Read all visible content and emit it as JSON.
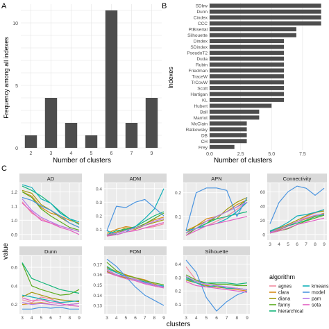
{
  "panel_labels": {
    "a": "A",
    "b": "B",
    "c": "C"
  },
  "panel_a": {
    "type": "bar",
    "categories": [
      "2",
      "3",
      "4",
      "5",
      "6",
      "7",
      "9"
    ],
    "values": [
      1,
      4,
      2,
      1,
      11,
      2,
      4
    ],
    "xlabel": "Number of clusters",
    "ylabel": "Frequency among all indexes",
    "yticks": [
      "0",
      "1",
      "2",
      "3",
      "4",
      "5",
      "6",
      "7",
      "8",
      "9",
      "10",
      "11"
    ],
    "ylim": [
      0,
      11.5
    ],
    "bar_color": "#4d4d4d",
    "grid_color": "#e3e3e3"
  },
  "panel_b": {
    "type": "bar",
    "orientation": "horizontal",
    "categories": [
      "SDbw",
      "Dunn",
      "Cindex",
      "CCC",
      "PtBiserial",
      "Silhouette",
      "Dindex",
      "SDindex",
      "PseudoT2",
      "Duda",
      "Rubin",
      "Friedman",
      "TraceW",
      "TrCovW",
      "Scott",
      "Hartigan",
      "KL",
      "Hubert",
      "Ball",
      "Marriot",
      "McClain",
      "Ratkowsky",
      "DB",
      "CH",
      "Frey"
    ],
    "values": [
      9,
      9,
      9,
      9,
      7,
      7,
      6,
      6,
      6,
      6,
      6,
      6,
      6,
      6,
      6,
      6,
      6,
      5,
      4,
      4,
      3,
      3,
      3,
      3,
      2
    ],
    "xlabel": "Number of clusters",
    "ylabel": "Indexes",
    "xticks": [
      "0.0",
      "2.5",
      "5.0",
      "7.5"
    ],
    "xlim": [
      0,
      9.3
    ],
    "bar_color": "#4d4d4d",
    "grid_color": "#e3e3e3"
  },
  "panel_c": {
    "xlabel": "clusters",
    "ylabel": "value",
    "x": [
      3,
      4,
      5,
      6,
      7,
      8,
      9
    ],
    "xticks": [
      "3",
      "4",
      "5",
      "6",
      "7",
      "8",
      "9"
    ],
    "legend_title": "algorithm",
    "algorithms": [
      {
        "name": "agnes",
        "color": "#f08aa0"
      },
      {
        "name": "clara",
        "color": "#d58a18"
      },
      {
        "name": "diana",
        "color": "#a29a0e"
      },
      {
        "name": "fanny",
        "color": "#5aab1e"
      },
      {
        "name": "hierarchical",
        "color": "#14b67a"
      },
      {
        "name": "kmeans",
        "color": "#10b0b8"
      },
      {
        "name": "model",
        "color": "#4b95e0"
      },
      {
        "name": "pam",
        "color": "#b778e8"
      },
      {
        "name": "sota",
        "color": "#e25ec2"
      }
    ],
    "facets": [
      {
        "title": "AD",
        "yticks": [
          "0.9",
          "1.0",
          "1.1",
          "1.2"
        ],
        "ylim": [
          0.86,
          1.26
        ],
        "series": [
          [
            1.13,
            1.05,
            1.01,
            0.98,
            0.96,
            0.94,
            0.92
          ],
          [
            1.2,
            1.17,
            1.09,
            1.05,
            1.03,
            1.0,
            0.98
          ],
          [
            1.21,
            1.19,
            1.11,
            1.07,
            1.02,
            0.98,
            0.95
          ],
          [
            1.2,
            1.16,
            1.08,
            1.03,
            0.99,
            0.95,
            0.93
          ],
          [
            1.24,
            1.21,
            1.17,
            1.12,
            1.06,
            1.01,
            0.97
          ],
          [
            1.25,
            1.23,
            1.15,
            1.12,
            1.05,
            1.01,
            0.99
          ],
          [
            1.16,
            1.14,
            1.1,
            1.07,
            1.03,
            0.98,
            0.95
          ],
          [
            1.15,
            1.07,
            1.02,
            0.99,
            0.96,
            0.94,
            0.92
          ],
          [
            1.12,
            1.06,
            1.0,
            0.98,
            0.95,
            0.93,
            0.9
          ]
        ]
      },
      {
        "title": "ADM",
        "yticks": [
          "0.1",
          "0.2",
          "0.3",
          "0.4"
        ],
        "ylim": [
          0.02,
          0.44
        ],
        "series": [
          [
            0.06,
            0.08,
            0.1,
            0.09,
            0.11,
            0.12,
            0.14
          ],
          [
            0.07,
            0.1,
            0.12,
            0.11,
            0.14,
            0.17,
            0.19
          ],
          [
            0.05,
            0.08,
            0.11,
            0.1,
            0.13,
            0.15,
            0.17
          ],
          [
            0.05,
            0.07,
            0.1,
            0.11,
            0.14,
            0.18,
            0.22
          ],
          [
            0.06,
            0.09,
            0.1,
            0.12,
            0.16,
            0.2,
            0.23
          ],
          [
            0.09,
            0.06,
            0.08,
            0.12,
            0.18,
            0.25,
            0.4
          ],
          [
            0.09,
            0.27,
            0.26,
            0.3,
            0.32,
            0.26,
            0.2
          ],
          [
            0.06,
            0.07,
            0.09,
            0.11,
            0.13,
            0.16,
            0.18
          ],
          [
            0.05,
            0.06,
            0.08,
            0.09,
            0.11,
            0.13,
            0.15
          ]
        ]
      },
      {
        "title": "APN",
        "yticks": [
          "0.1",
          "0.2"
        ],
        "ylim": [
          0.0,
          0.24
        ],
        "series": [
          [
            0.03,
            0.05,
            0.06,
            0.08,
            0.1,
            0.13,
            0.16
          ],
          [
            0.04,
            0.06,
            0.09,
            0.1,
            0.12,
            0.15,
            0.17
          ],
          [
            0.03,
            0.06,
            0.08,
            0.09,
            0.13,
            0.16,
            0.18
          ],
          [
            0.02,
            0.05,
            0.07,
            0.1,
            0.12,
            0.14,
            0.17
          ],
          [
            0.03,
            0.05,
            0.07,
            0.09,
            0.1,
            0.11,
            0.12
          ],
          [
            0.04,
            0.05,
            0.06,
            0.07,
            0.09,
            0.12,
            0.16
          ],
          [
            0.04,
            0.2,
            0.22,
            0.22,
            0.21,
            0.1,
            0.18
          ],
          [
            0.03,
            0.05,
            0.08,
            0.1,
            0.12,
            0.14,
            0.16
          ],
          [
            0.02,
            0.04,
            0.06,
            0.07,
            0.08,
            0.09,
            0.1
          ]
        ]
      },
      {
        "title": "Connectivity",
        "yticks": [
          "0",
          "20",
          "40",
          "60"
        ],
        "ylim": [
          -8,
          72
        ],
        "series": [
          [
            3,
            8,
            12,
            18,
            25,
            30,
            35
          ],
          [
            2,
            6,
            12,
            18,
            22,
            26,
            30
          ],
          [
            5,
            9,
            14,
            20,
            26,
            31,
            33
          ],
          [
            2,
            5,
            8,
            14,
            19,
            23,
            27
          ],
          [
            4,
            7,
            12,
            16,
            20,
            25,
            28
          ],
          [
            5,
            10,
            17,
            26,
            28,
            31,
            35
          ],
          [
            15,
            45,
            60,
            68,
            65,
            55,
            65
          ],
          [
            3,
            7,
            13,
            18,
            23,
            27,
            29
          ],
          [
            2,
            5,
            9,
            14,
            17,
            20,
            23
          ]
        ]
      },
      {
        "title": "Dunn",
        "yticks": [
          "0.2",
          "0.4",
          "0.6"
        ],
        "ylim": [
          0.1,
          0.72
        ],
        "series": [
          [
            0.25,
            0.22,
            0.28,
            0.26,
            0.22,
            0.23,
            0.24
          ],
          [
            0.2,
            0.21,
            0.22,
            0.2,
            0.19,
            0.2,
            0.21
          ],
          [
            0.28,
            0.33,
            0.3,
            0.27,
            0.25,
            0.24,
            0.23
          ],
          [
            0.64,
            0.4,
            0.36,
            0.33,
            0.3,
            0.31,
            0.36
          ],
          [
            0.65,
            0.48,
            0.44,
            0.4,
            0.36,
            0.34,
            0.32
          ],
          [
            0.3,
            0.28,
            0.26,
            0.24,
            0.22,
            0.23,
            0.24
          ],
          [
            0.15,
            0.15,
            0.17,
            0.16,
            0.17,
            0.15,
            0.15
          ],
          [
            0.22,
            0.2,
            0.21,
            0.2,
            0.19,
            0.2,
            0.21
          ],
          [
            0.27,
            0.24,
            0.25,
            0.22,
            0.21,
            0.19,
            0.18
          ]
        ]
      },
      {
        "title": "FOM",
        "yticks": [
          "0.13",
          "0.14",
          "0.15",
          "0.16",
          "0.17"
        ],
        "ylim": [
          0.122,
          0.178
        ],
        "series": [
          [
            0.165,
            0.16,
            0.157,
            0.156,
            0.154,
            0.15,
            0.148
          ],
          [
            0.167,
            0.163,
            0.16,
            0.157,
            0.155,
            0.151,
            0.148
          ],
          [
            0.163,
            0.159,
            0.157,
            0.155,
            0.153,
            0.15,
            0.148
          ],
          [
            0.172,
            0.164,
            0.159,
            0.157,
            0.154,
            0.152,
            0.15
          ],
          [
            0.168,
            0.162,
            0.158,
            0.155,
            0.152,
            0.15,
            0.148
          ],
          [
            0.166,
            0.162,
            0.158,
            0.155,
            0.153,
            0.15,
            0.149
          ],
          [
            0.175,
            0.168,
            0.158,
            0.148,
            0.14,
            0.135,
            0.13
          ],
          [
            0.164,
            0.16,
            0.158,
            0.155,
            0.152,
            0.15,
            0.148
          ],
          [
            0.162,
            0.159,
            0.156,
            0.154,
            0.151,
            0.149,
            0.147
          ]
        ]
      },
      {
        "title": "Silhouette",
        "yticks": [
          "0.1",
          "0.2",
          "0.3",
          "0.4"
        ],
        "ylim": [
          0.03,
          0.46
        ],
        "series": [
          [
            0.38,
            0.28,
            0.25,
            0.24,
            0.23,
            0.22,
            0.21
          ],
          [
            0.3,
            0.26,
            0.24,
            0.23,
            0.22,
            0.21,
            0.2
          ],
          [
            0.28,
            0.26,
            0.24,
            0.23,
            0.22,
            0.22,
            0.21
          ],
          [
            0.32,
            0.28,
            0.26,
            0.25,
            0.25,
            0.24,
            0.24
          ],
          [
            0.3,
            0.27,
            0.26,
            0.26,
            0.26,
            0.25,
            0.26
          ],
          [
            0.29,
            0.26,
            0.23,
            0.24,
            0.22,
            0.22,
            0.21
          ],
          [
            0.43,
            0.34,
            0.15,
            0.05,
            0.12,
            0.17,
            0.2
          ],
          [
            0.31,
            0.27,
            0.25,
            0.24,
            0.23,
            0.22,
            0.21
          ],
          [
            0.27,
            0.24,
            0.23,
            0.22,
            0.21,
            0.2,
            0.19
          ]
        ]
      }
    ]
  }
}
